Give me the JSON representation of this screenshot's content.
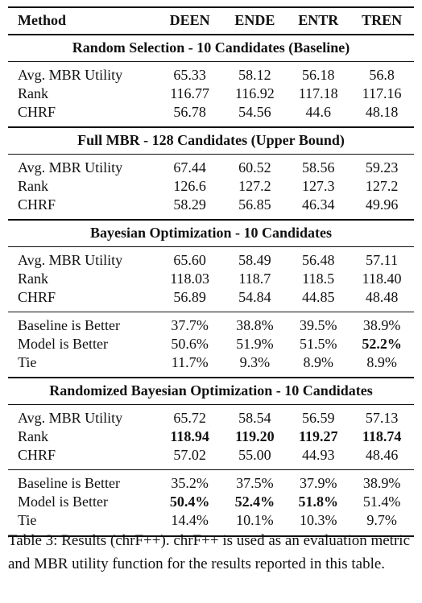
{
  "header": {
    "method": "Method",
    "columns": [
      "DEEN",
      "ENDE",
      "ENTR",
      "TREN"
    ]
  },
  "sections": [
    {
      "title": "Random Selection - 10 Candidates (Baseline)",
      "metrics": [
        {
          "label": "Avg. MBR Utility",
          "values": [
            "65.33",
            "58.12",
            "56.18",
            "56.8"
          ]
        },
        {
          "label": "Rank",
          "values": [
            "116.77",
            "116.92",
            "117.18",
            "117.16"
          ]
        },
        {
          "label": "CHRF",
          "values": [
            "56.78",
            "54.56",
            "44.6",
            "48.18"
          ]
        }
      ]
    },
    {
      "title": "Full MBR - 128 Candidates (Upper Bound)",
      "metrics": [
        {
          "label": "Avg. MBR Utility",
          "values": [
            "67.44",
            "60.52",
            "58.56",
            "59.23"
          ]
        },
        {
          "label": "Rank",
          "values": [
            "126.6",
            "127.2",
            "127.3",
            "127.2"
          ]
        },
        {
          "label": "CHRF",
          "values": [
            "58.29",
            "56.85",
            "46.34",
            "49.96"
          ]
        }
      ]
    },
    {
      "title": "Bayesian Optimization - 10 Candidates",
      "metrics": [
        {
          "label": "Avg. MBR Utility",
          "values": [
            "65.60",
            "58.49",
            "56.48",
            "57.11"
          ]
        },
        {
          "label": "Rank",
          "values": [
            "118.03",
            "118.7",
            "118.5",
            "118.40"
          ]
        },
        {
          "label": "CHRF",
          "values": [
            "56.89",
            "54.84",
            "44.85",
            "48.48"
          ]
        }
      ],
      "comparison": [
        {
          "label": "Baseline is Better",
          "values": [
            "37.7%",
            "38.8%",
            "39.5%",
            "38.9%"
          ]
        },
        {
          "label": "Model is Better",
          "values": [
            "50.6%",
            "51.9%",
            "51.5%",
            "52.2%"
          ]
        },
        {
          "label": "Tie",
          "values": [
            "11.7%",
            "9.3%",
            "8.9%",
            "8.9%"
          ]
        }
      ]
    },
    {
      "title": "Randomized Bayesian Optimization - 10 Candidates",
      "metrics": [
        {
          "label": "Avg. MBR Utility",
          "values": [
            "65.72",
            "58.54",
            "56.59",
            "57.13"
          ]
        },
        {
          "label": "Rank",
          "values": [
            "118.94",
            "119.20",
            "119.27",
            "118.74"
          ]
        },
        {
          "label": "CHRF",
          "values": [
            "57.02",
            "55.00",
            "44.93",
            "48.46"
          ]
        }
      ],
      "comparison": [
        {
          "label": "Baseline is Better",
          "values": [
            "35.2%",
            "37.5%",
            "37.9%",
            "38.9%"
          ]
        },
        {
          "label": "Model is Better",
          "values": [
            "50.4%",
            "52.4%",
            "51.8%",
            "51.4%"
          ]
        },
        {
          "label": "Tie",
          "values": [
            "14.4%",
            "10.1%",
            "10.3%",
            "9.7%"
          ]
        }
      ]
    }
  ],
  "caption": "Table 3: Results (chrF++). chrF++ is used as an evaluation metric and MBR utility function for the results reported in this table."
}
